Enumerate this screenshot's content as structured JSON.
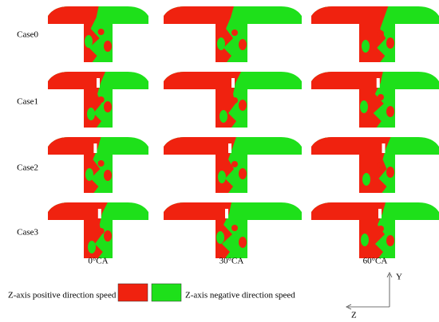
{
  "row_labels": [
    "Case0",
    "Case1",
    "Case2",
    "Case3"
  ],
  "column_labels": [
    "0°CA",
    "30°CA",
    "60°CA"
  ],
  "legend": {
    "positive": "Z-axis positive direction speed",
    "negative": "Z-axis negative direction speed"
  },
  "axes": {
    "y": "Y",
    "z": "Z"
  }
}
